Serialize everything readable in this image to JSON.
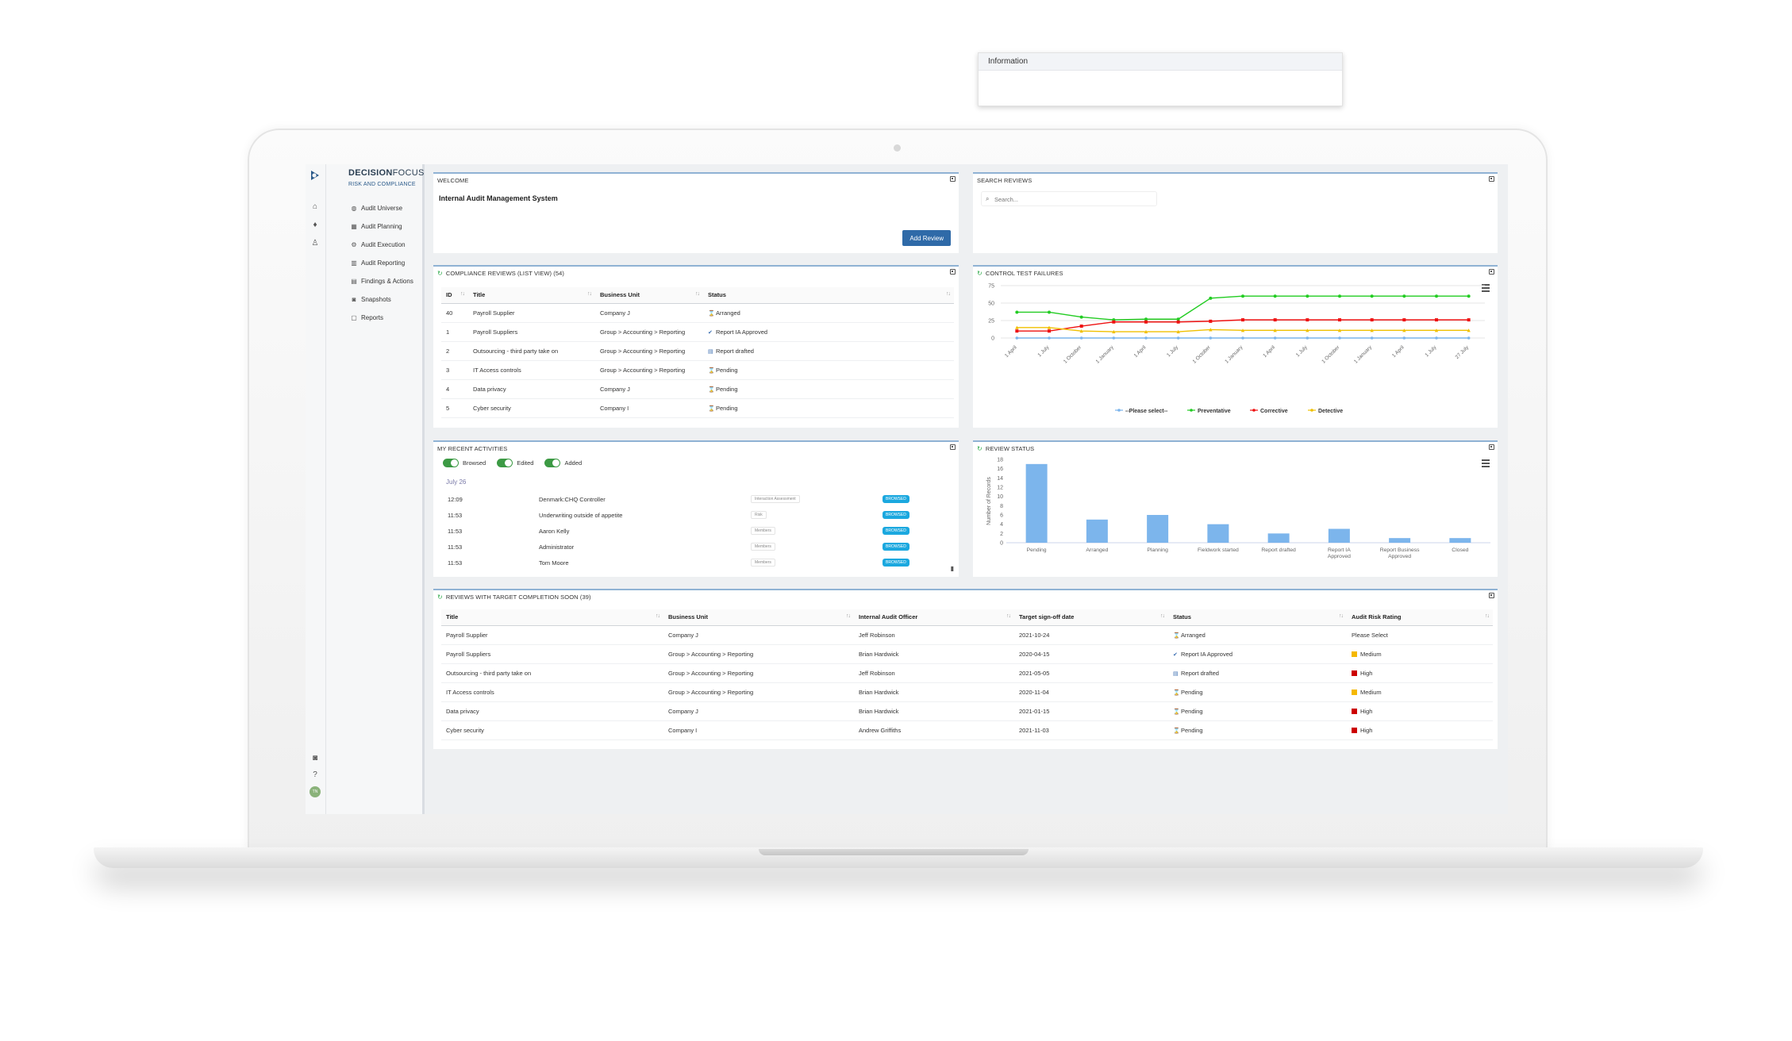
{
  "brand": {
    "name_bold": "DECISION",
    "name_light": "FOCUS",
    "subtitle": "RISK AND COMPLIANCE"
  },
  "sidebar": {
    "collapse": "»",
    "items": [
      {
        "label": "Audit Universe",
        "icon": "globe-icon",
        "glyph": "◍"
      },
      {
        "label": "Audit Planning",
        "icon": "grid-icon",
        "glyph": "▦"
      },
      {
        "label": "Audit Execution",
        "icon": "gears-icon",
        "glyph": "⚙"
      },
      {
        "label": "Audit Reporting",
        "icon": "bar-chart-icon",
        "glyph": "▥"
      },
      {
        "label": "Findings & Actions",
        "icon": "file-icon",
        "glyph": "▤"
      },
      {
        "label": "Snapshots",
        "icon": "camera-icon",
        "glyph": "◙"
      },
      {
        "label": "Reports",
        "icon": "document-icon",
        "glyph": "▢"
      }
    ],
    "avatar": "TN"
  },
  "welcome": {
    "title": "WELCOME",
    "heading": "Internal Audit Management System",
    "add_button": "Add Review"
  },
  "search": {
    "title": "SEARCH REVIEWS",
    "placeholder": "Search...",
    "popup_title": "Information"
  },
  "compliance": {
    "title": "COMPLIANCE REVIEWS (LIST VIEW) (54)",
    "columns": [
      "ID",
      "Title",
      "Business Unit",
      "Status"
    ],
    "rows": [
      {
        "id": "40",
        "title": "Payroll Supplier",
        "unit": "Company J",
        "status": "Arranged",
        "icon": "arranged"
      },
      {
        "id": "1",
        "title": "Payroll Suppliers",
        "unit": "Group > Accounting > Reporting",
        "status": "Report IA Approved",
        "icon": "approved"
      },
      {
        "id": "2",
        "title": "Outsourcing - third party take on",
        "unit": "Group > Accounting > Reporting",
        "status": "Report drafted",
        "icon": "drafted"
      },
      {
        "id": "3",
        "title": "IT Access controls",
        "unit": "Group > Accounting > Reporting",
        "status": "Pending",
        "icon": "pending"
      },
      {
        "id": "4",
        "title": "Data privacy",
        "unit": "Company J",
        "status": "Pending",
        "icon": "pending"
      },
      {
        "id": "5",
        "title": "Cyber security",
        "unit": "Company I",
        "status": "Pending",
        "icon": "pending"
      }
    ]
  },
  "control_chart": {
    "title": "CONTROL TEST FAILURES",
    "chart_data": {
      "type": "line",
      "categories": [
        "1 April",
        "1 July",
        "1 October",
        "1 January",
        "1 April",
        "1 July",
        "1 October",
        "1 January",
        "1 April",
        "1 July",
        "1 October",
        "1 January",
        "1 April",
        "1 July",
        "27 July"
      ],
      "ylim": [
        0,
        75
      ],
      "yticks": [
        0,
        25,
        50,
        75
      ],
      "legend_position": "bottom",
      "series": [
        {
          "name": "--Please select--",
          "color": "#7cb5ec",
          "values": [
            0,
            0,
            0,
            0,
            0,
            0,
            0,
            0,
            0,
            0,
            0,
            0,
            0,
            0,
            0
          ]
        },
        {
          "name": "Preventative",
          "color": "#22cc22",
          "values": [
            37,
            37,
            30,
            26,
            27,
            27,
            57,
            60,
            60,
            60,
            60,
            60,
            60,
            60,
            60
          ]
        },
        {
          "name": "Corrective",
          "color": "#ee1111",
          "values": [
            10,
            10,
            17,
            23,
            23,
            23,
            24,
            26,
            26,
            26,
            26,
            26,
            26,
            26,
            26
          ]
        },
        {
          "name": "Detective",
          "color": "#f0c000",
          "values": [
            15,
            15,
            10,
            9,
            9,
            9,
            12,
            11,
            11,
            11,
            11,
            11,
            11,
            11,
            11
          ]
        }
      ]
    }
  },
  "activities": {
    "title": "MY RECENT ACTIVITIES",
    "toggles": [
      "Browsed",
      "Edited",
      "Added"
    ],
    "date": "July 26",
    "rows": [
      {
        "time": "12:09",
        "name": "Denmark:CHQ Controller",
        "tag": "Interaction Assessment",
        "badge": "BROWSED"
      },
      {
        "time": "11:53",
        "name": "Underwriting outside of appetite",
        "tag": "Risk",
        "badge": "BROWSED"
      },
      {
        "time": "11:53",
        "name": "Aaron Kelly",
        "tag": "Members",
        "badge": "BROWSED"
      },
      {
        "time": "11:53",
        "name": "Administrator",
        "tag": "Members",
        "badge": "BROWSED"
      },
      {
        "time": "11:53",
        "name": "Tom Moore",
        "tag": "Members",
        "badge": "BROWSED"
      }
    ]
  },
  "status_chart": {
    "title": "REVIEW STATUS",
    "chart_data": {
      "type": "bar",
      "categories": [
        "Pending",
        "Arranged",
        "Planning",
        "Fieldwork started",
        "Report drafted",
        "Report IA Approved",
        "Report Business Approved",
        "Closed"
      ],
      "values": [
        17,
        5,
        6,
        4,
        2,
        3,
        1,
        1
      ],
      "ylabel": "Number of Records",
      "ylim": [
        0,
        18
      ],
      "yticks": [
        0,
        2,
        4,
        6,
        8,
        10,
        12,
        14,
        16,
        18
      ],
      "color": "#7cb5ec"
    }
  },
  "target": {
    "title": "REVIEWS WITH TARGET COMPLETION SOON (39)",
    "columns": [
      "Title",
      "Business Unit",
      "Internal Audit Officer",
      "Target sign-off date",
      "Status",
      "Audit Risk Rating"
    ],
    "rows": [
      {
        "title": "Payroll Supplier",
        "unit": "Company J",
        "officer": "Jeff Robinson",
        "date": "2021-10-24",
        "status": "Arranged",
        "icon": "arranged",
        "risk": "Please Select",
        "risk_color": ""
      },
      {
        "title": "Payroll Suppliers",
        "unit": "Group > Accounting > Reporting",
        "officer": "Brian Hardwick",
        "date": "2020-04-15",
        "status": "Report IA Approved",
        "icon": "approved",
        "risk": "Medium",
        "risk_color": "#f5b800"
      },
      {
        "title": "Outsourcing - third party take on",
        "unit": "Group > Accounting > Reporting",
        "officer": "Jeff Robinson",
        "date": "2021-05-05",
        "status": "Report drafted",
        "icon": "drafted",
        "risk": "High",
        "risk_color": "#cc0000"
      },
      {
        "title": "IT Access controls",
        "unit": "Group > Accounting > Reporting",
        "officer": "Brian Hardwick",
        "date": "2020-11-04",
        "status": "Pending",
        "icon": "pending",
        "risk": "Medium",
        "risk_color": "#f5b800"
      },
      {
        "title": "Data privacy",
        "unit": "Company J",
        "officer": "Brian Hardwick",
        "date": "2021-01-15",
        "status": "Pending",
        "icon": "pending",
        "risk": "High",
        "risk_color": "#cc0000"
      },
      {
        "title": "Cyber security",
        "unit": "Company I",
        "officer": "Andrew Griffiths",
        "date": "2021-11-03",
        "status": "Pending",
        "icon": "pending",
        "risk": "High",
        "risk_color": "#cc0000"
      }
    ]
  }
}
